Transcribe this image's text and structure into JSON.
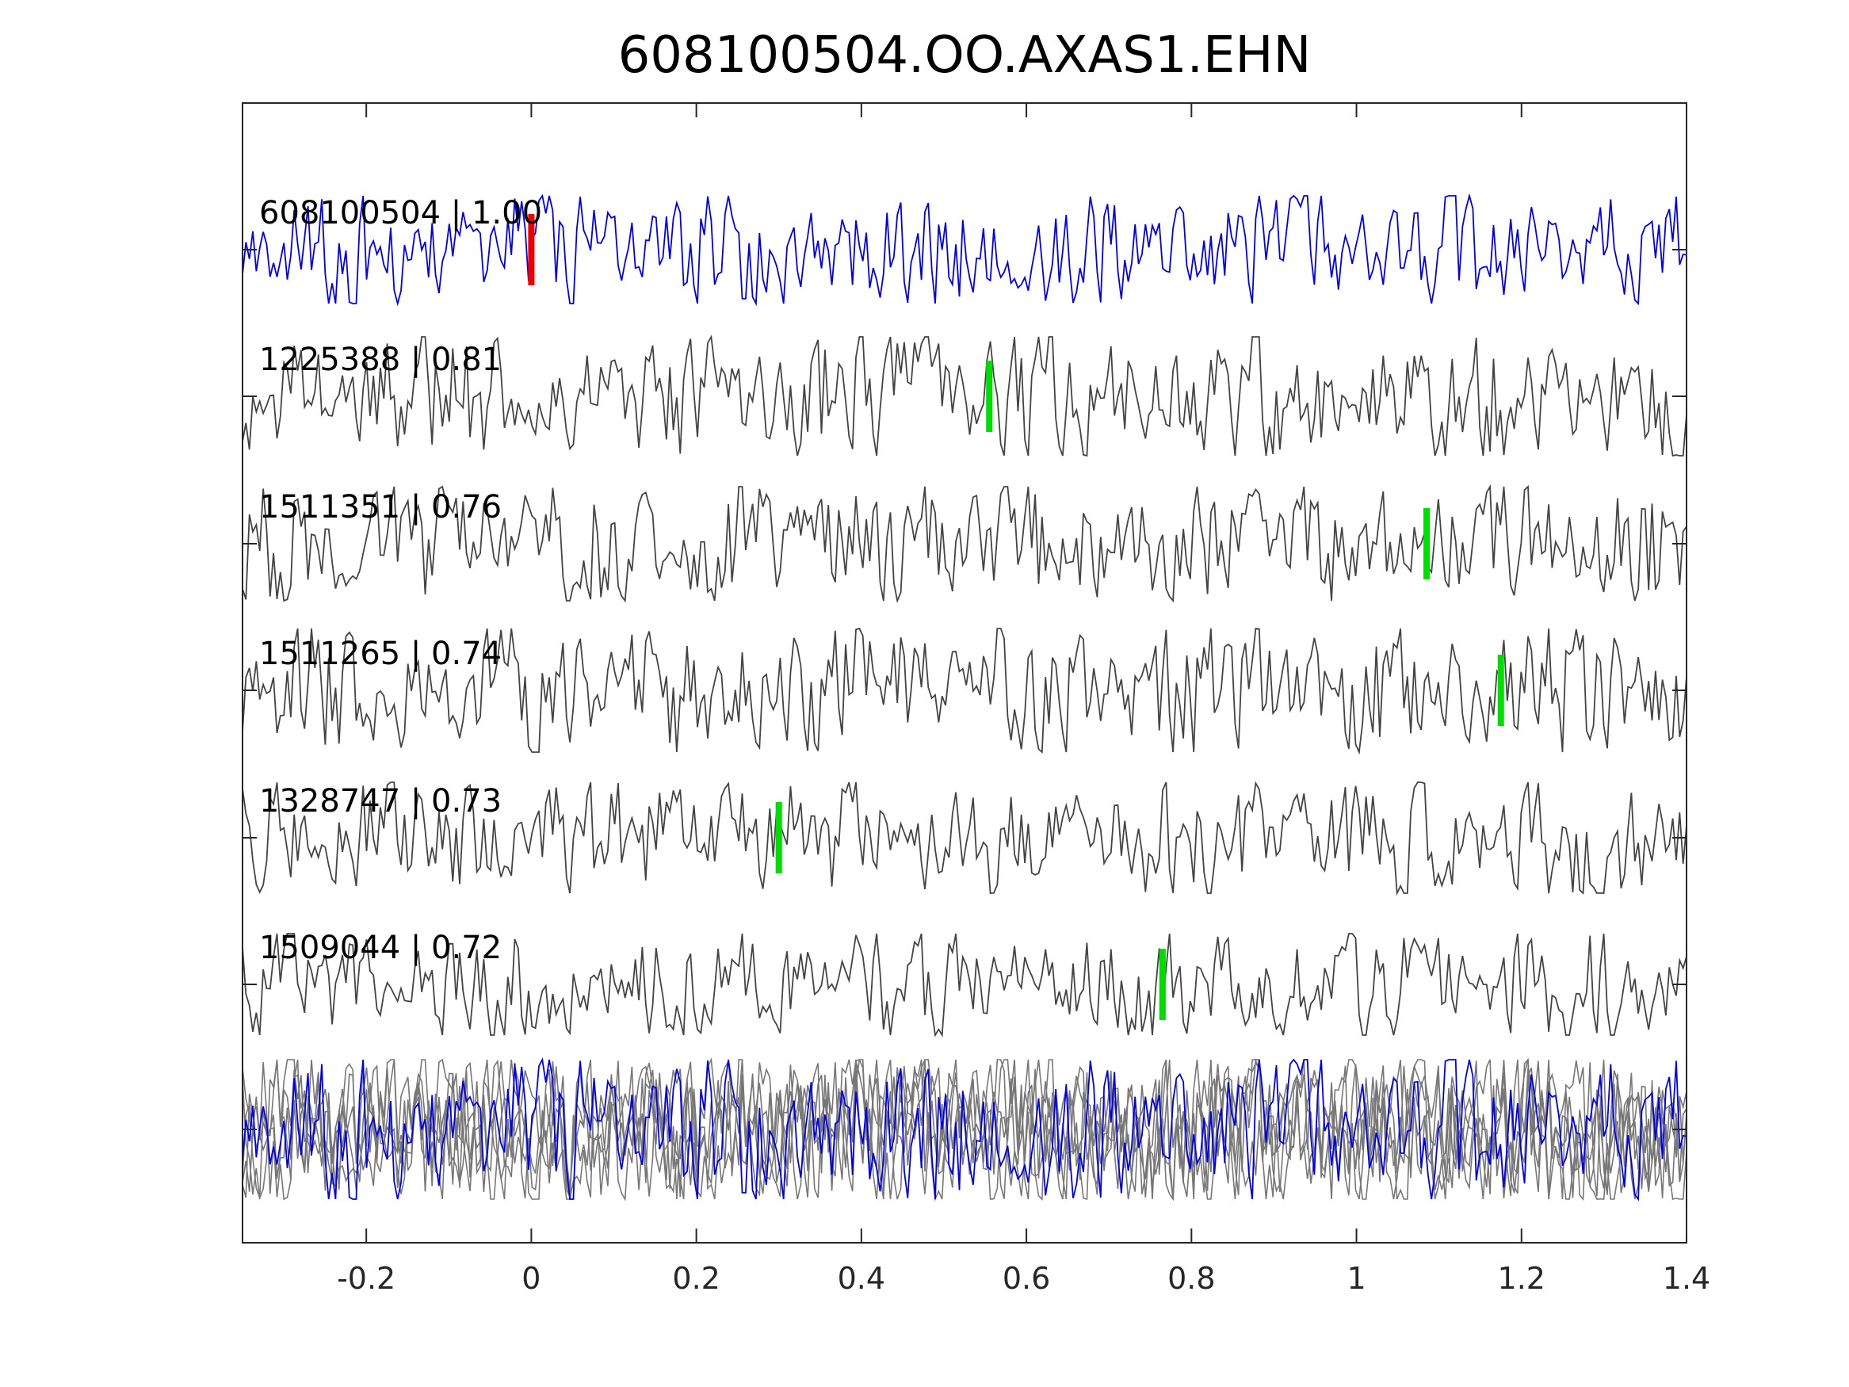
{
  "chart_data": {
    "type": "line",
    "title": "608100504.OO.AXAS1.EHN",
    "xlabel": "",
    "ylabel": "",
    "xlim": [
      -0.35,
      1.4
    ],
    "xticks": [
      -0.2,
      0,
      0.2,
      0.4,
      0.6,
      0.8,
      1,
      1.2,
      1.4
    ],
    "xtick_labels": [
      "-0.2",
      "0",
      "0.2",
      "0.4",
      "0.6",
      "0.8",
      "1",
      "1.2",
      "1.4"
    ],
    "grid": false,
    "legend": "none",
    "template_color": "#0000ee",
    "trace_color": "#444444",
    "stack_gray_color": "#777777",
    "template_pick_color": "#ee0000",
    "match_pick_color": "#00dd00",
    "traces": [
      {
        "label": "608100504 | 1.00",
        "pick": 0.0,
        "template": true
      },
      {
        "label": "1225388 | 0.81",
        "pick": 0.555
      },
      {
        "label": "1511351 | 0.76",
        "pick": 1.085
      },
      {
        "label": "1511265 | 0.74",
        "pick": 1.175
      },
      {
        "label": "1328747 | 0.73",
        "pick": 0.3
      },
      {
        "label": "1509044 | 0.72",
        "pick": 0.765
      }
    ],
    "stack": "overlay of all traces"
  }
}
